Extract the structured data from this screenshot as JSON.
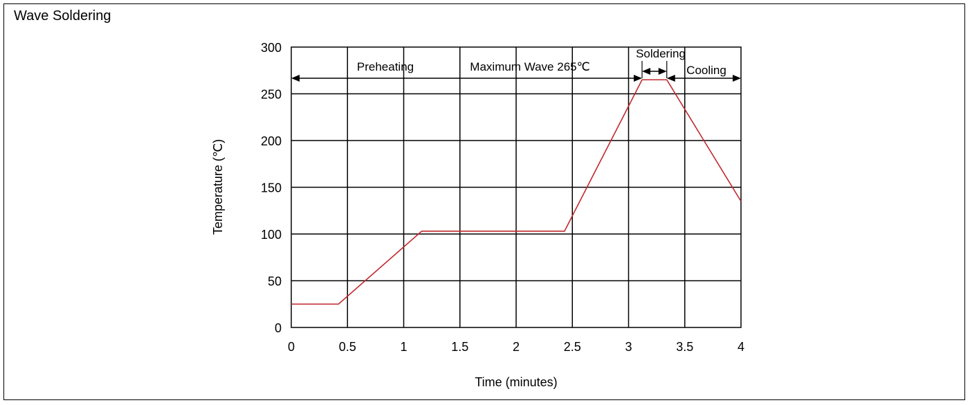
{
  "chart_data": {
    "type": "line",
    "title": "Wave Soldering",
    "xlabel": "Time (minutes)",
    "ylabel": "Temperature (℃)",
    "xlim": [
      0,
      4
    ],
    "ylim": [
      0,
      300
    ],
    "x_ticks": [
      "0",
      "0.5",
      "1",
      "1.5",
      "2",
      "2.5",
      "3",
      "3.5",
      "4"
    ],
    "y_ticks": [
      "0",
      "50",
      "100",
      "150",
      "200",
      "250",
      "300"
    ],
    "grid": true,
    "series": [
      {
        "color": "#c0282d",
        "points": [
          [
            0,
            25
          ],
          [
            0.42,
            25
          ],
          [
            1.16,
            103
          ],
          [
            2.43,
            103
          ],
          [
            3.12,
            265
          ],
          [
            3.34,
            265
          ],
          [
            4.0,
            135
          ]
        ]
      }
    ],
    "annotations": {
      "preheating": "Preheating",
      "max_wave": "Maximum Wave 265℃",
      "soldering": "Soldering",
      "cooling": "Cooling"
    }
  }
}
